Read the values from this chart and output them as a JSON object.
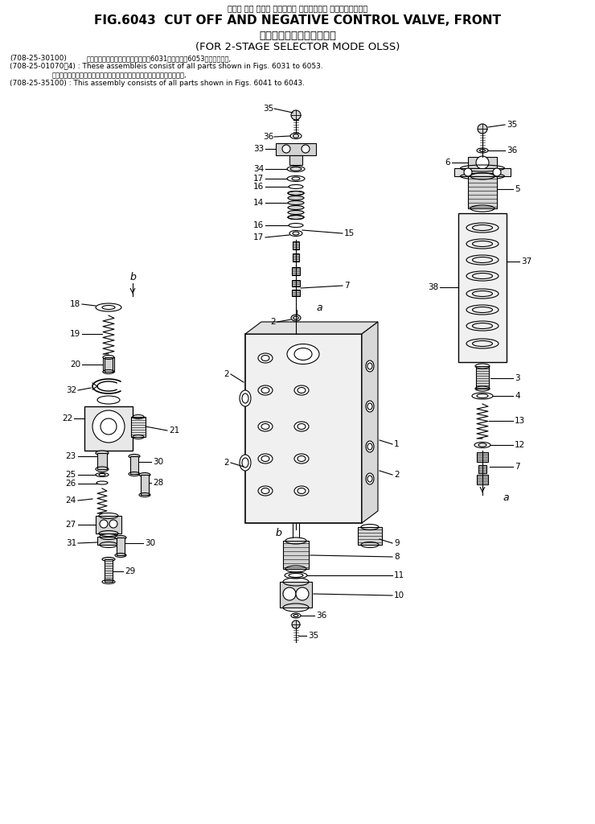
{
  "title_line1": "カット オフ および ネガティブ コントロール バルブ、フロント",
  "title_line2": "FIG.6043  CUT OFF AND NEGATIVE CONTROL VALVE, FRONT",
  "title_line3": "２段モード切換ＯＬＳＳ用",
  "title_line4": "(FOR 2-STAGE SELECTOR MODE OLSS)",
  "note1_code1": "(708-25-30100)",
  "note1_jp": "これらのアセンブリの構成部品は療6031図および療6053図を含みます,",
  "note1_en": "(708-25-01070～4) : These assembleis consist of all parts shown in Figs. 6031 to 6053.",
  "note2_jp": "このアセンブリの構成部品は第６０４１図から第６０４３図まで含みます,",
  "note2_en": "(708-25-35100) : This assembly consists of all parts shown in Figs. 6041 to 6043.",
  "bg_color": "#ffffff",
  "line_color": "#000000",
  "text_color": "#000000"
}
